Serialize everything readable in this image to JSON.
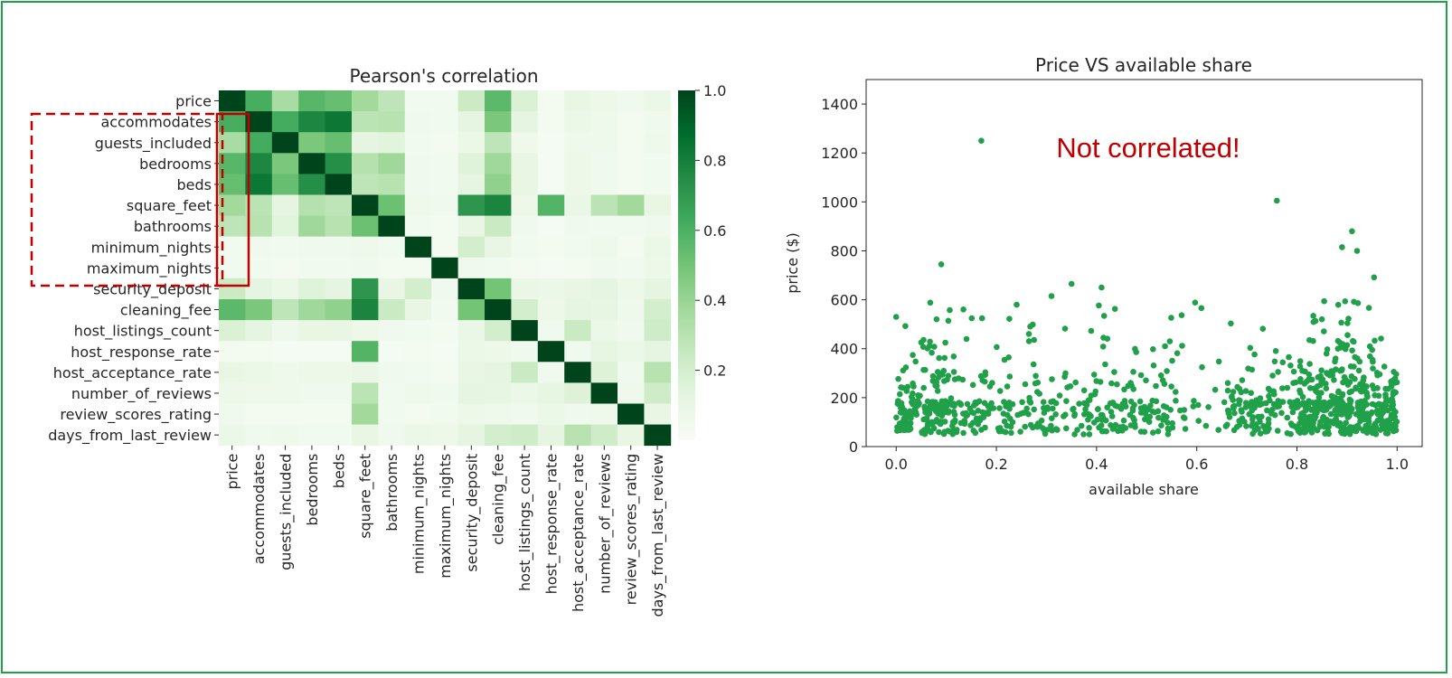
{
  "chart_data": [
    {
      "type": "heatmap",
      "title": "Pearson's correlation",
      "labels": [
        "price",
        "accommodates",
        "guests_included",
        "bedrooms",
        "beds",
        "square_feet",
        "bathrooms",
        "minimum_nights",
        "maximum_nights",
        "security_deposit",
        "cleaning_fee",
        "host_listings_count",
        "host_response_rate",
        "host_acceptance_rate",
        "number_of_reviews",
        "review_scores_rating",
        "days_from_last_review"
      ],
      "colormap": "Greens",
      "colorbar": {
        "range": [
          0,
          1.0
        ],
        "ticks": [
          "0.2",
          "0.4",
          "0.6",
          "0.8",
          "1.0"
        ]
      },
      "matrix": [
        [
          1.0,
          0.61,
          0.35,
          0.57,
          0.53,
          0.37,
          0.28,
          0.04,
          0.04,
          0.23,
          0.56,
          0.17,
          0.03,
          0.1,
          0.07,
          0.05,
          0.08
        ],
        [
          0.61,
          1.0,
          0.62,
          0.77,
          0.83,
          0.29,
          0.3,
          0.05,
          0.04,
          0.12,
          0.48,
          0.12,
          0.03,
          0.08,
          0.06,
          0.03,
          0.05
        ],
        [
          0.35,
          0.62,
          1.0,
          0.48,
          0.53,
          0.12,
          0.14,
          0.04,
          0.03,
          0.08,
          0.28,
          0.06,
          0.02,
          0.06,
          0.06,
          0.03,
          0.06
        ],
        [
          0.57,
          0.77,
          0.48,
          1.0,
          0.74,
          0.31,
          0.38,
          0.05,
          0.04,
          0.15,
          0.38,
          0.1,
          0.02,
          0.07,
          0.05,
          0.03,
          0.04
        ],
        [
          0.53,
          0.83,
          0.53,
          0.74,
          1.0,
          0.28,
          0.3,
          0.05,
          0.04,
          0.12,
          0.42,
          0.1,
          0.02,
          0.07,
          0.05,
          0.03,
          0.04
        ],
        [
          0.37,
          0.29,
          0.12,
          0.31,
          0.28,
          1.0,
          0.52,
          0.06,
          0.05,
          0.71,
          0.78,
          0.07,
          0.58,
          0.09,
          0.29,
          0.37,
          0.1
        ],
        [
          0.28,
          0.3,
          0.14,
          0.38,
          0.3,
          0.52,
          1.0,
          0.04,
          0.03,
          0.1,
          0.24,
          0.05,
          0.02,
          0.05,
          0.04,
          0.04,
          0.05
        ],
        [
          0.04,
          0.05,
          0.04,
          0.05,
          0.05,
          0.06,
          0.04,
          1.0,
          0.03,
          0.2,
          0.1,
          0.04,
          0.03,
          0.04,
          0.06,
          0.03,
          0.08
        ],
        [
          0.04,
          0.04,
          0.03,
          0.04,
          0.04,
          0.05,
          0.03,
          0.03,
          1.0,
          0.05,
          0.04,
          0.03,
          0.02,
          0.03,
          0.05,
          0.04,
          0.07
        ],
        [
          0.23,
          0.12,
          0.08,
          0.15,
          0.12,
          0.71,
          0.1,
          0.2,
          0.05,
          1.0,
          0.5,
          0.09,
          0.08,
          0.1,
          0.12,
          0.07,
          0.12
        ],
        [
          0.56,
          0.48,
          0.28,
          0.38,
          0.42,
          0.78,
          0.24,
          0.1,
          0.04,
          0.5,
          1.0,
          0.2,
          0.07,
          0.12,
          0.11,
          0.06,
          0.2
        ],
        [
          0.17,
          0.12,
          0.06,
          0.1,
          0.1,
          0.07,
          0.05,
          0.04,
          0.03,
          0.09,
          0.2,
          1.0,
          0.05,
          0.24,
          0.08,
          0.05,
          0.22
        ],
        [
          0.03,
          0.03,
          0.02,
          0.02,
          0.02,
          0.58,
          0.02,
          0.03,
          0.02,
          0.08,
          0.07,
          0.05,
          1.0,
          0.05,
          0.11,
          0.08,
          0.12
        ],
        [
          0.1,
          0.08,
          0.06,
          0.07,
          0.07,
          0.09,
          0.05,
          0.04,
          0.03,
          0.1,
          0.12,
          0.24,
          0.05,
          1.0,
          0.16,
          0.05,
          0.3
        ],
        [
          0.07,
          0.06,
          0.06,
          0.05,
          0.05,
          0.29,
          0.04,
          0.06,
          0.05,
          0.12,
          0.11,
          0.08,
          0.11,
          0.16,
          1.0,
          0.06,
          0.22
        ],
        [
          0.05,
          0.03,
          0.03,
          0.03,
          0.03,
          0.37,
          0.04,
          0.03,
          0.04,
          0.07,
          0.06,
          0.05,
          0.08,
          0.05,
          0.06,
          1.0,
          0.1
        ],
        [
          0.08,
          0.05,
          0.06,
          0.04,
          0.04,
          0.1,
          0.05,
          0.08,
          0.07,
          0.12,
          0.2,
          0.22,
          0.12,
          0.3,
          0.22,
          0.1,
          1.0
        ]
      ],
      "highlight": "dashed box and red box around first column for accommodates to maximum_nights"
    },
    {
      "type": "scatter",
      "title": "Price VS available share",
      "xlabel": "available share",
      "ylabel": "price ($)",
      "xlim": [
        -0.06,
        1.05
      ],
      "ylim": [
        0,
        1500
      ],
      "xticks": [
        "0.0",
        "0.2",
        "0.4",
        "0.6",
        "0.8",
        "1.0"
      ],
      "yticks": [
        "0",
        "200",
        "400",
        "600",
        "800",
        "1000",
        "1200",
        "1400"
      ],
      "color": "#21a04a",
      "annotation": "Not correlated!",
      "outliers": [
        [
          0.17,
          1250
        ],
        [
          0.76,
          1005
        ],
        [
          0.09,
          745
        ],
        [
          0.91,
          880
        ],
        [
          0.89,
          815
        ],
        [
          0.92,
          800
        ],
        [
          0.0,
          530
        ],
        [
          0.35,
          665
        ],
        [
          0.41,
          650
        ],
        [
          0.31,
          615
        ]
      ],
      "generated_points": 1100
    }
  ]
}
